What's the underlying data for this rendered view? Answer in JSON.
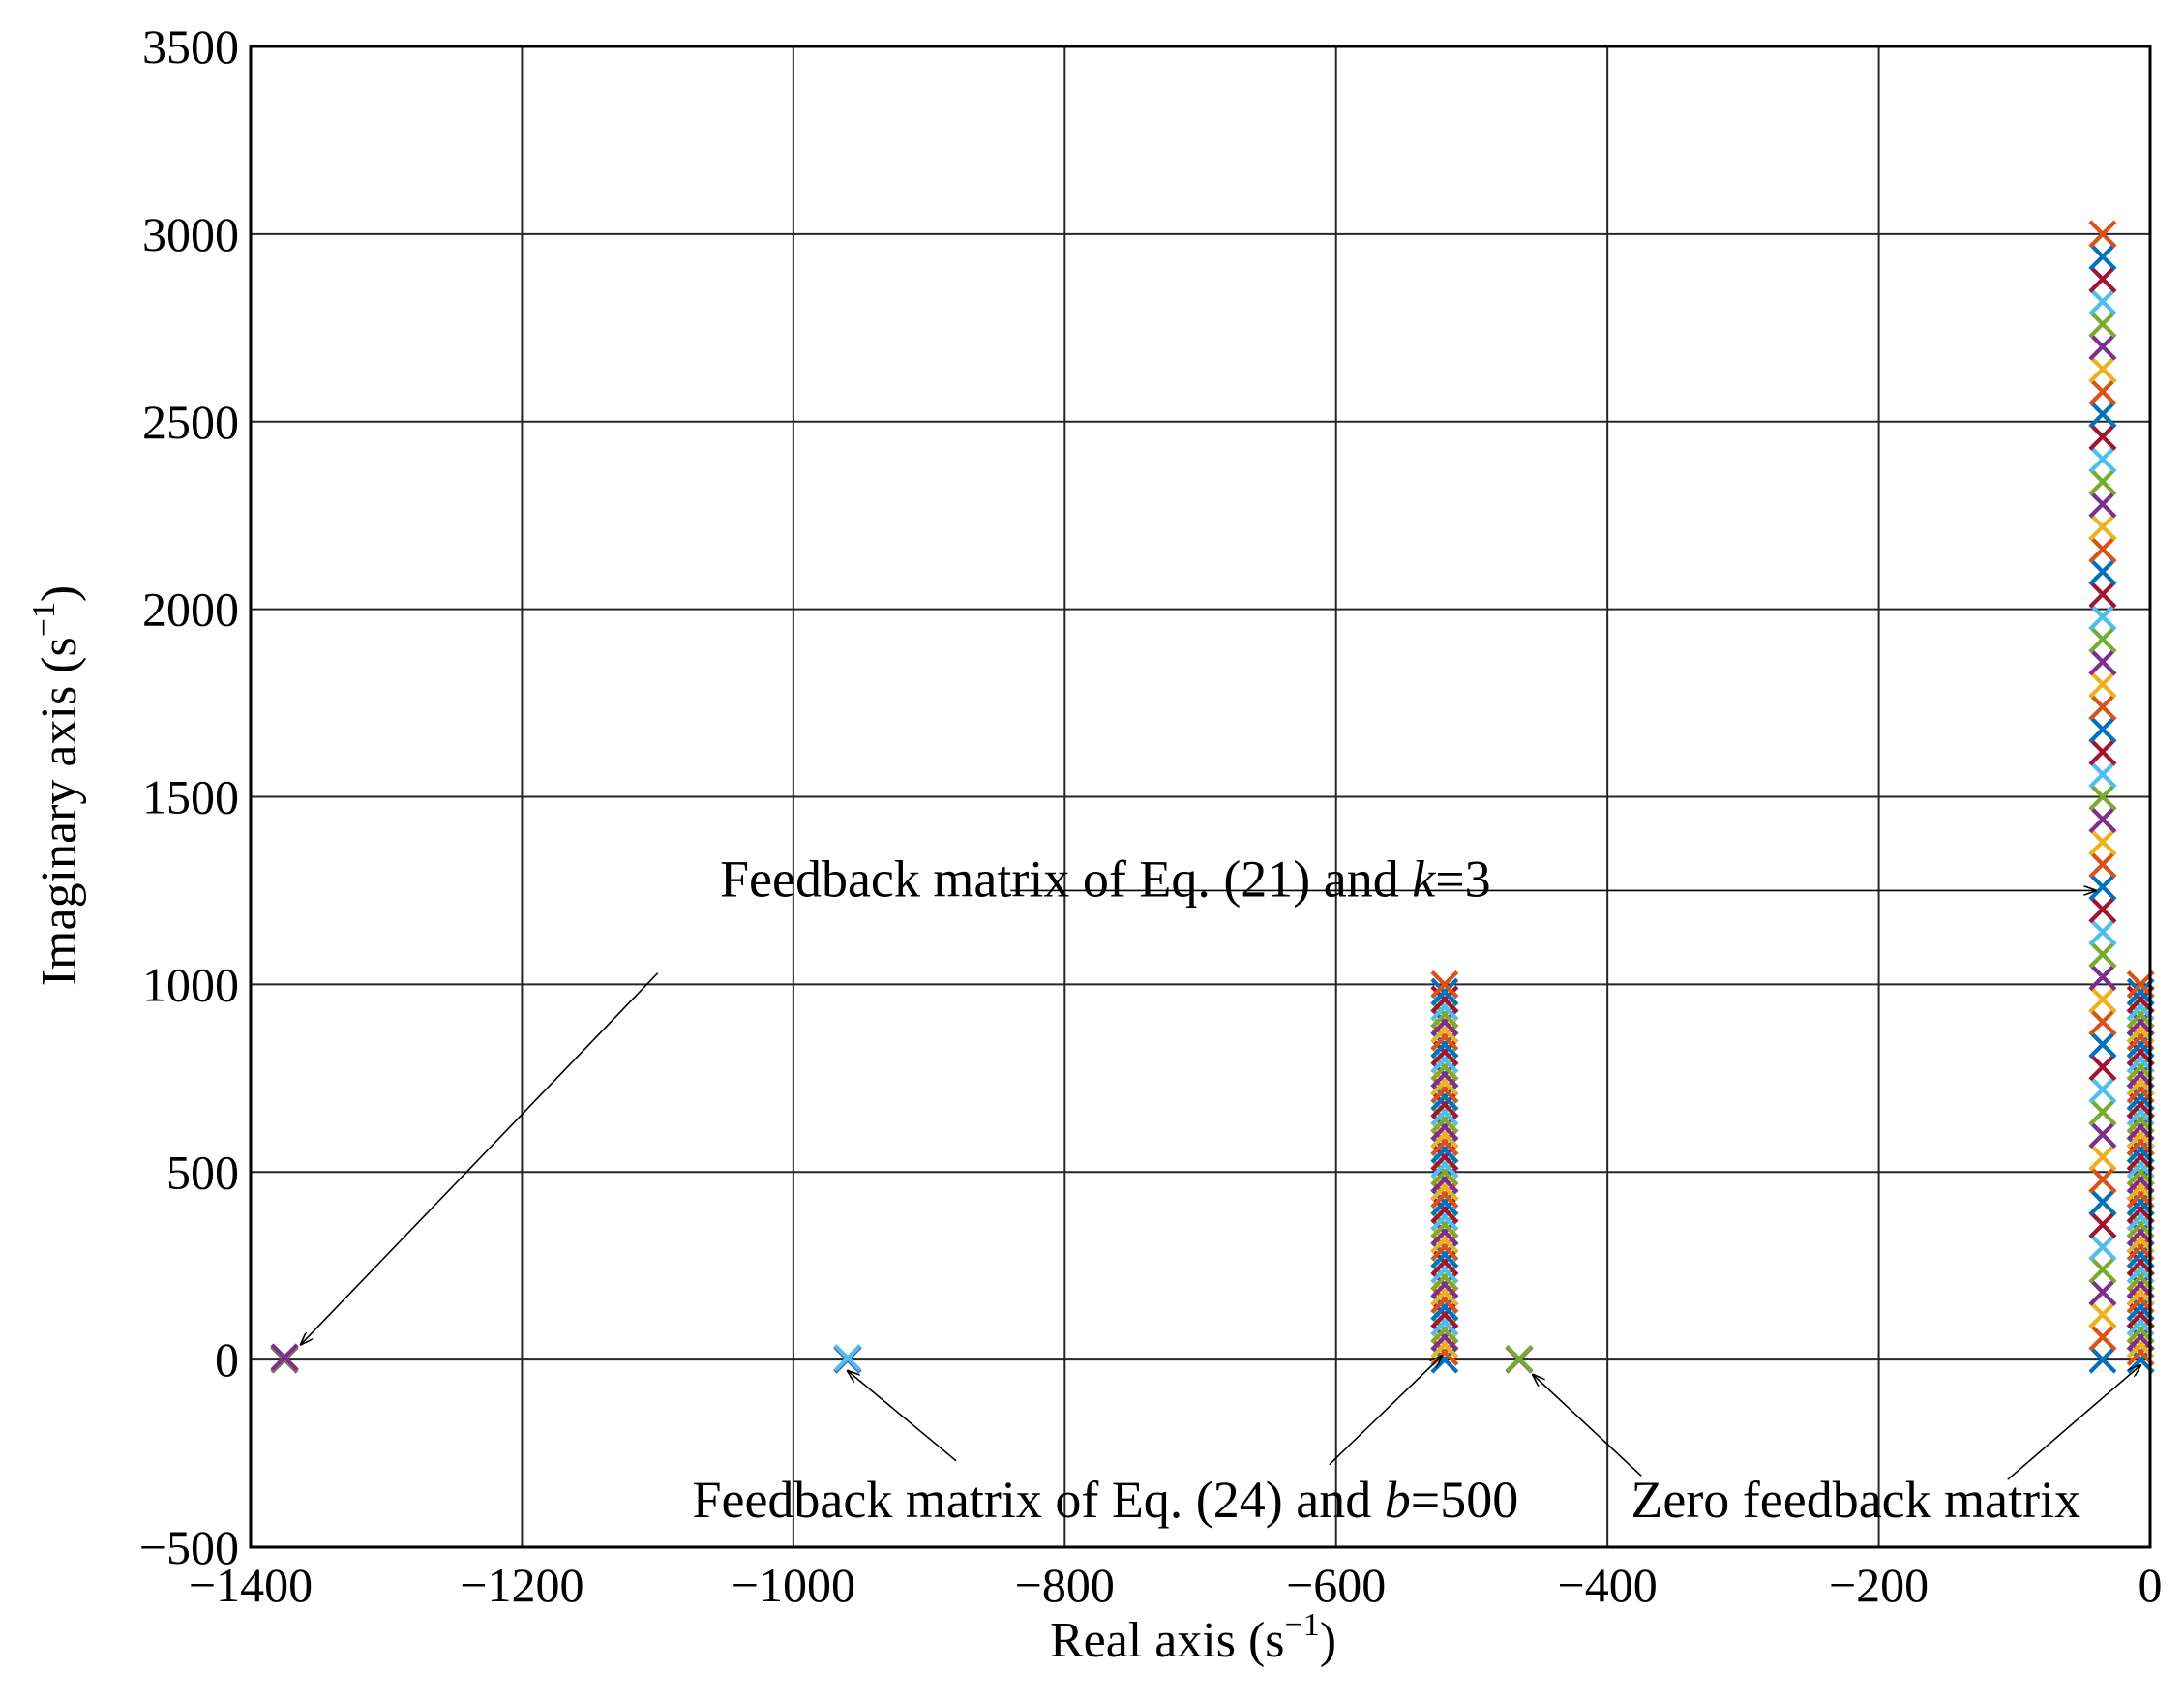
{
  "chart_data": {
    "type": "scatter",
    "title": "",
    "xlabel": {
      "text": "Real axis (s",
      "sup": "−1",
      "close": ")"
    },
    "ylabel": {
      "text": "Imaginary axis (s",
      "sup": "−1",
      "close": ")"
    },
    "xlim": [
      -1400,
      0
    ],
    "ylim": [
      -500,
      3500
    ],
    "xticks": [
      -1400,
      -1200,
      -1000,
      -800,
      -600,
      -400,
      -200,
      0
    ],
    "xtick_labels": [
      "−1400",
      "−1200",
      "−1000",
      "−800",
      "−600",
      "−400",
      "−200",
      "0"
    ],
    "yticks": [
      -500,
      0,
      500,
      1000,
      1500,
      2000,
      2500,
      3000,
      3500
    ],
    "ytick_labels": [
      "−500",
      "0",
      "500",
      "1000",
      "1500",
      "2000",
      "2500",
      "3000",
      "3500"
    ],
    "grid": true,
    "marker": "x",
    "colors": [
      "#0072BD",
      "#D95319",
      "#EDB120",
      "#7E2F8E",
      "#77AC30",
      "#4DBEEE",
      "#A2142F"
    ],
    "series": [
      {
        "x": -1375,
        "y_values": [
          0,
          2,
          4,
          6
        ],
        "colors": [
          "#0072BD",
          "#D95319",
          "#77AC30",
          "#7E2F8E"
        ]
      },
      {
        "x": -960,
        "y_values": [
          0,
          2,
          4
        ],
        "colors": [
          "#0072BD",
          "#7E2F8E",
          "#4DBEEE"
        ]
      },
      {
        "x": -520,
        "y_start": 0,
        "y_end": 1000,
        "y_step": 20
      },
      {
        "x": -465,
        "y_values": [
          0,
          2
        ],
        "colors": [
          "#7E2F8E",
          "#77AC30"
        ]
      },
      {
        "x": -35,
        "y_start": 0,
        "y_end": 3000,
        "y_step": 60
      },
      {
        "x": -7,
        "y_start": 0,
        "y_end": 1000,
        "y_step": 20
      }
    ],
    "annotations": [
      {
        "parts": [
          {
            "text": "Feedback matrix of Eq. (21) and ",
            "italic": false
          },
          {
            "text": "k",
            "italic": true
          },
          {
            "text": "=3",
            "italic": false
          }
        ],
        "text_at": [
          -770,
          1235
        ],
        "arrows": [
          {
            "from": [
              -840,
              1250
            ],
            "to": [
              -40,
              1250
            ]
          },
          {
            "from": [
              -1100,
              1030
            ],
            "to": [
              -1363,
              40
            ]
          }
        ]
      },
      {
        "parts": [
          {
            "text": "Feedback matrix of Eq. (24) and ",
            "italic": false
          },
          {
            "text": "b",
            "italic": true
          },
          {
            "text": "=500",
            "italic": false
          }
        ],
        "text_at": [
          -770,
          -420
        ],
        "arrows": [
          {
            "from": [
              -880,
              -270
            ],
            "to": [
              -960,
              -30
            ]
          },
          {
            "from": [
              -605,
              -280
            ],
            "to": [
              -522,
              10
            ]
          }
        ]
      },
      {
        "parts": [
          {
            "text": "Zero feedback matrix",
            "italic": false
          }
        ],
        "text_at": [
          -217,
          -420
        ],
        "arrows": [
          {
            "from": [
              -375,
              -310
            ],
            "to": [
              -455,
              -40
            ]
          },
          {
            "from": [
              -105,
              -320
            ],
            "to": [
              -7,
              -15
            ]
          }
        ]
      }
    ]
  }
}
